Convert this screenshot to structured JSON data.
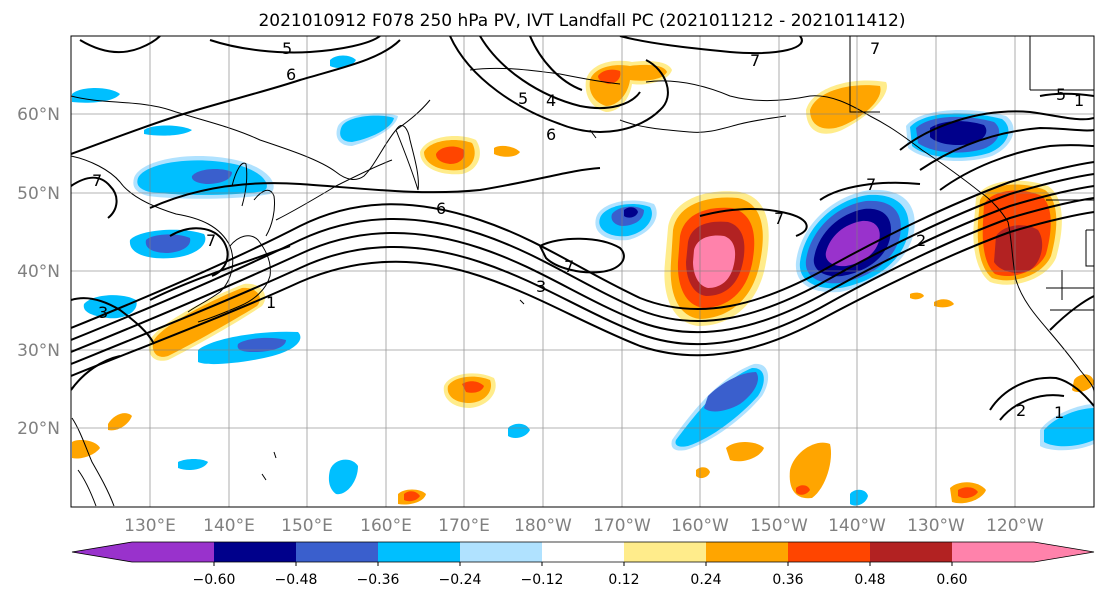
{
  "title": "2021010912 F078 250 hPa PV, IVT Landfall PC (2021011212 - 2021011412)",
  "lat_labels": [
    "60°N",
    "50°N",
    "40°N",
    "30°N",
    "20°N"
  ],
  "lon_labels": [
    "130°E",
    "140°E",
    "150°E",
    "160°E",
    "170°E",
    "180°W",
    "170°W",
    "160°W",
    "150°W",
    "140°W",
    "130°W",
    "120°W"
  ],
  "colorbar": {
    "tick_labels": [
      "−0.60",
      "−0.48",
      "−0.36",
      "−0.24",
      "−0.12",
      "0.12",
      "0.24",
      "0.36",
      "0.48",
      "0.60"
    ],
    "colors": [
      "#9932cc",
      "#00008b",
      "#3a5fcd",
      "#00bfff",
      "#b0e2ff",
      "#ffffff",
      "#ffec8b",
      "#ffa500",
      "#ff4500",
      "#b22222",
      "#ff82ab",
      "#ff82ab"
    ]
  },
  "contour_labels": [
    "5",
    "6",
    "7",
    "5",
    "4",
    "6",
    "6",
    "7",
    "3",
    "7",
    "1",
    "3",
    "7",
    "7",
    "7",
    "7",
    "2",
    "5",
    "2",
    "1",
    "1"
  ],
  "colors": {
    "purple": "#9932cc",
    "navy": "#00008b",
    "royal": "#3a5fcd",
    "sky": "#00bfff",
    "lightsky": "#b0e2ff",
    "yellow": "#ffec8b",
    "orange": "#ffa500",
    "redorange": "#ff4500",
    "firebrick": "#b22222",
    "pink": "#ff82ab"
  }
}
